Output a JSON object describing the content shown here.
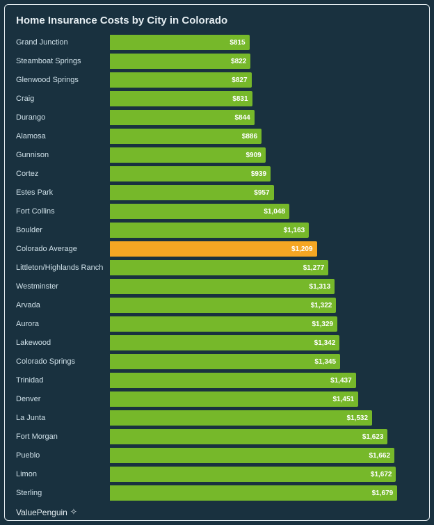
{
  "chart": {
    "type": "bar-horizontal",
    "title": "Home Insurance Costs by City in Colorado",
    "title_fontsize": 15,
    "title_color": "#e6eef2",
    "background_color": "#19313f",
    "frame_border_color": "#e6eef2",
    "label_color": "#cfe0e8",
    "label_fontsize": 11,
    "value_color": "#ffffff",
    "value_fontsize": 10,
    "bar_color_default": "#76b82a",
    "bar_color_highlight": "#f5a623",
    "xlim_max": 1800,
    "value_prefix": "$",
    "rows": [
      {
        "label": "Grand Junction",
        "value": 815,
        "display": "$815",
        "highlight": false
      },
      {
        "label": "Steamboat Springs",
        "value": 822,
        "display": "$822",
        "highlight": false
      },
      {
        "label": "Glenwood Springs",
        "value": 827,
        "display": "$827",
        "highlight": false
      },
      {
        "label": "Craig",
        "value": 831,
        "display": "$831",
        "highlight": false
      },
      {
        "label": "Durango",
        "value": 844,
        "display": "$844",
        "highlight": false
      },
      {
        "label": "Alamosa",
        "value": 886,
        "display": "$886",
        "highlight": false
      },
      {
        "label": "Gunnison",
        "value": 909,
        "display": "$909",
        "highlight": false
      },
      {
        "label": "Cortez",
        "value": 939,
        "display": "$939",
        "highlight": false
      },
      {
        "label": "Estes Park",
        "value": 957,
        "display": "$957",
        "highlight": false
      },
      {
        "label": "Fort Collins",
        "value": 1048,
        "display": "$1,048",
        "highlight": false
      },
      {
        "label": "Boulder",
        "value": 1163,
        "display": "$1,163",
        "highlight": false
      },
      {
        "label": "Colorado Average",
        "value": 1209,
        "display": "$1,209",
        "highlight": true
      },
      {
        "label": "Littleton/Highlands Ranch",
        "value": 1277,
        "display": "$1,277",
        "highlight": false
      },
      {
        "label": "Westminster",
        "value": 1313,
        "display": "$1,313",
        "highlight": false
      },
      {
        "label": "Arvada",
        "value": 1322,
        "display": "$1,322",
        "highlight": false
      },
      {
        "label": "Aurora",
        "value": 1329,
        "display": "$1,329",
        "highlight": false
      },
      {
        "label": "Lakewood",
        "value": 1342,
        "display": "$1,342",
        "highlight": false
      },
      {
        "label": "Colorado Springs",
        "value": 1345,
        "display": "$1,345",
        "highlight": false
      },
      {
        "label": "Trinidad",
        "value": 1437,
        "display": "$1,437",
        "highlight": false
      },
      {
        "label": "Denver",
        "value": 1451,
        "display": "$1,451",
        "highlight": false
      },
      {
        "label": "La Junta",
        "value": 1532,
        "display": "$1,532",
        "highlight": false
      },
      {
        "label": "Fort Morgan",
        "value": 1623,
        "display": "$1,623",
        "highlight": false
      },
      {
        "label": "Pueblo",
        "value": 1662,
        "display": "$1,662",
        "highlight": false
      },
      {
        "label": "Limon",
        "value": 1672,
        "display": "$1,672",
        "highlight": false
      },
      {
        "label": "Sterling",
        "value": 1679,
        "display": "$1,679",
        "highlight": false
      }
    ]
  },
  "footer": {
    "brand": "ValuePenguin",
    "icon_glyph": "✧"
  }
}
